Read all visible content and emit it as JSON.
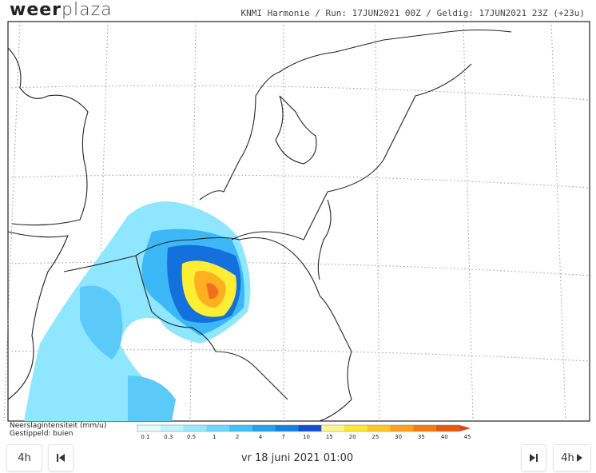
{
  "header": {
    "logo_bold": "weer",
    "logo_light": "plaza",
    "info": "KNMI Harmonie / Run: 17JUN2021 00Z / Geldig: 17JUN2021 23Z (+23u)"
  },
  "legend": {
    "title": "Neerslagintensiteit (mm/u)",
    "note": "Gestippeld: buien",
    "ticks": [
      0.1,
      0.3,
      0.5,
      1,
      2,
      4,
      7,
      10,
      15,
      20,
      25,
      30,
      35,
      40,
      45
    ]
  },
  "controls": {
    "back_step": "4h",
    "date": "vr 18 juni 2021 01:00",
    "forward_step": "4h"
  }
}
